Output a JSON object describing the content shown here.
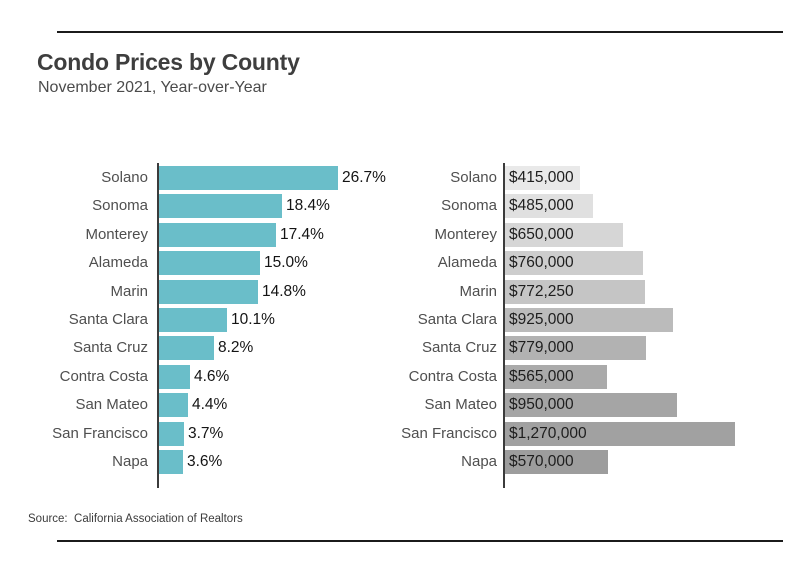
{
  "header": {
    "title": "Condo Prices by County",
    "subtitle": "November 2021, Year-over-Year"
  },
  "footer": {
    "source": "Source:  California Association of Realtors"
  },
  "colors": {
    "percent_bar": "#6abec9",
    "axis": "#3b3b3b",
    "rule": "#1b1b1b",
    "price_bar_shades": [
      "#e9e9e9",
      "#e0e0e0",
      "#d6d6d6",
      "#cdcdcd",
      "#c5c5c5",
      "#bbbbbb",
      "#b2b2b2",
      "#aaaaaa",
      "#a5a5a5",
      "#a1a1a1",
      "#9d9d9d"
    ]
  },
  "chart_data": [
    {
      "type": "bar",
      "orientation": "horizontal",
      "categories": [
        "Solano",
        "Sonoma",
        "Monterey",
        "Alameda",
        "Marin",
        "Santa Clara",
        "Santa Cruz",
        "Contra Costa",
        "San Mateo",
        "San Francisco",
        "Napa"
      ],
      "values": [
        26.7,
        18.4,
        17.4,
        15.0,
        14.8,
        10.1,
        8.2,
        4.6,
        4.4,
        3.7,
        3.6
      ],
      "value_labels": [
        "26.7%",
        "18.4%",
        "17.4%",
        "15.0%",
        "14.8%",
        "10.1%",
        "8.2%",
        "4.6%",
        "4.4%",
        "3.7%",
        "3.6%"
      ],
      "xlim": [
        0,
        26.7
      ],
      "value_label_position": "outside-right",
      "grid": false,
      "legend": false
    },
    {
      "type": "bar",
      "orientation": "horizontal",
      "categories": [
        "Solano",
        "Sonoma",
        "Monterey",
        "Alameda",
        "Marin",
        "Santa Clara",
        "Santa Cruz",
        "Contra Costa",
        "San Mateo",
        "San Francisco",
        "Napa"
      ],
      "values": [
        415000,
        485000,
        650000,
        760000,
        772250,
        925000,
        779000,
        565000,
        950000,
        1270000,
        570000
      ],
      "value_labels": [
        "$415,000",
        "$485,000",
        "$650,000",
        "$760,000",
        "$772,250",
        "$925,000",
        "$779,000",
        "$565,000",
        "$950,000",
        "$1,270,000",
        "$570,000"
      ],
      "xlim": [
        0,
        1270000
      ],
      "value_label_position": "inside-left",
      "grid": false,
      "legend": false
    }
  ]
}
